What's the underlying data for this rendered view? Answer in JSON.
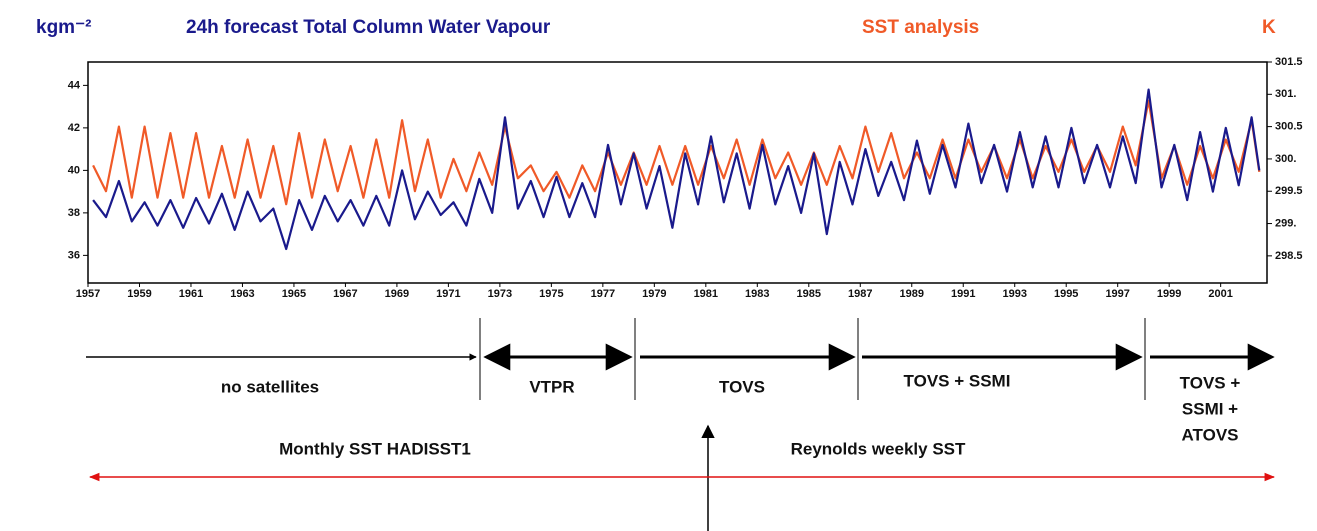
{
  "chart_data": {
    "type": "line",
    "unit_left": "kgm⁻²",
    "title": "24h forecast Total Column Water Vapour",
    "title2": "SST analysis",
    "unit_right": "K",
    "xlim": [
      1957,
      2002.8
    ],
    "xticks": [
      1957,
      1959,
      1961,
      1963,
      1965,
      1967,
      1969,
      1971,
      1973,
      1975,
      1977,
      1979,
      1981,
      1983,
      1985,
      1987,
      1989,
      1991,
      1993,
      1995,
      1997,
      1999,
      2001
    ],
    "ylim": [
      34.7,
      45.1
    ],
    "yticks": [
      36,
      38,
      40,
      42,
      44
    ],
    "y2lim": [
      298.08,
      301.5
    ],
    "y2ticks": [
      298.5,
      {
        "value": 299,
        "label": "299."
      },
      299.5,
      {
        "value": 300,
        "label": "300."
      },
      300.5,
      {
        "value": 301,
        "label": "301."
      },
      301.5
    ],
    "x": [
      1957.2,
      1957.7,
      1958.2,
      1958.7,
      1959.2,
      1959.7,
      1960.2,
      1960.7,
      1961.2,
      1961.7,
      1962.2,
      1962.7,
      1963.2,
      1963.7,
      1964.2,
      1964.7,
      1965.2,
      1965.7,
      1966.2,
      1966.7,
      1967.2,
      1967.7,
      1968.2,
      1968.7,
      1969.2,
      1969.7,
      1970.2,
      1970.7,
      1971.2,
      1971.7,
      1972.2,
      1972.7,
      1973.2,
      1973.7,
      1974.2,
      1974.7,
      1975.2,
      1975.7,
      1976.2,
      1976.7,
      1977.2,
      1977.7,
      1978.2,
      1978.7,
      1979.2,
      1979.7,
      1980.2,
      1980.7,
      1981.2,
      1981.7,
      1982.2,
      1982.7,
      1983.2,
      1983.7,
      1984.2,
      1984.7,
      1985.2,
      1985.7,
      1986.2,
      1986.7,
      1987.2,
      1987.7,
      1988.2,
      1988.7,
      1989.2,
      1989.7,
      1990.2,
      1990.7,
      1991.2,
      1991.7,
      1992.2,
      1992.7,
      1993.2,
      1993.7,
      1994.2,
      1994.7,
      1995.2,
      1995.7,
      1996.2,
      1996.7,
      1997.2,
      1997.7,
      1998.2,
      1998.7,
      1999.2,
      1999.7,
      2000.2,
      2000.7,
      2001.2,
      2001.7,
      2002.2,
      2002.5
    ],
    "series": [
      {
        "name": "SST analysis",
        "color": "#f05a28",
        "axis": "y2",
        "values": [
          299.9,
          299.5,
          300.5,
          299.4,
          300.5,
          299.4,
          300.4,
          299.4,
          300.4,
          299.4,
          300.2,
          299.4,
          300.3,
          299.4,
          300.2,
          299.3,
          300.4,
          299.4,
          300.3,
          299.5,
          300.2,
          299.4,
          300.3,
          299.4,
          300.6,
          299.5,
          300.3,
          299.4,
          300.0,
          299.5,
          300.1,
          299.6,
          300.5,
          299.7,
          299.9,
          299.5,
          299.8,
          299.4,
          299.9,
          299.5,
          300.1,
          299.6,
          300.1,
          299.6,
          300.2,
          299.6,
          300.2,
          299.6,
          300.2,
          299.7,
          300.3,
          299.6,
          300.3,
          299.7,
          300.1,
          299.6,
          300.1,
          299.6,
          300.2,
          299.7,
          300.5,
          299.8,
          300.4,
          299.7,
          300.1,
          299.7,
          300.3,
          299.7,
          300.3,
          299.8,
          300.2,
          299.7,
          300.3,
          299.7,
          300.2,
          299.8,
          300.3,
          299.8,
          300.2,
          299.8,
          300.5,
          299.9,
          300.9,
          299.7,
          300.2,
          299.6,
          300.2,
          299.7,
          300.3,
          299.8,
          300.6,
          299.8
        ]
      },
      {
        "name": "24h forecast Total Column Water Vapour",
        "color": "#1a1a8c",
        "values": [
          38.6,
          37.8,
          39.5,
          37.6,
          38.5,
          37.4,
          38.6,
          37.3,
          38.7,
          37.5,
          38.9,
          37.2,
          39.0,
          37.6,
          38.2,
          36.3,
          38.6,
          37.2,
          38.8,
          37.6,
          38.6,
          37.4,
          38.8,
          37.4,
          40.0,
          37.7,
          39.0,
          37.9,
          38.5,
          37.4,
          39.6,
          38.0,
          42.5,
          38.2,
          39.5,
          37.8,
          39.7,
          37.8,
          39.4,
          37.8,
          41.2,
          38.4,
          40.8,
          38.2,
          40.2,
          37.3,
          40.8,
          38.4,
          41.6,
          38.5,
          40.8,
          38.2,
          41.2,
          38.4,
          40.2,
          38.0,
          40.8,
          37.0,
          40.4,
          38.4,
          41.0,
          38.8,
          40.4,
          38.6,
          41.4,
          38.9,
          41.2,
          39.2,
          42.2,
          39.4,
          41.2,
          39.0,
          41.8,
          39.2,
          41.6,
          39.2,
          42.0,
          39.4,
          41.2,
          39.2,
          41.6,
          39.4,
          43.8,
          39.2,
          41.2,
          38.6,
          41.8,
          39.0,
          42.0,
          39.3,
          42.5,
          40.0
        ]
      }
    ],
    "eras": [
      "no satellites",
      "VTPR",
      "TOVS",
      "TOVS + SSMI",
      [
        "TOVS +",
        "SSMI +",
        "ATOVS"
      ]
    ],
    "sst_sources": [
      "Monthly SST HADISST1",
      "Reynolds weekly SST"
    ]
  }
}
